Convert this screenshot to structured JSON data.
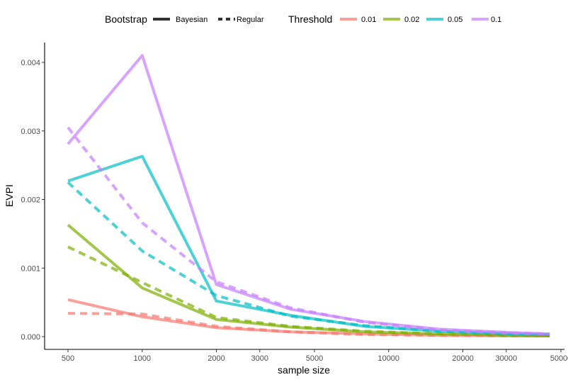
{
  "chart_data": {
    "type": "line",
    "title": "",
    "xlabel": "sample size",
    "ylabel": "EVPI",
    "x_scale": "log",
    "xlim": [
      500,
      50000
    ],
    "ylim": [
      0,
      0.0042
    ],
    "x_ticks": [
      500,
      1000,
      2000,
      3000,
      5000,
      10000,
      20000,
      30000,
      50000
    ],
    "x_tick_labels": [
      "500",
      "1000",
      "2000",
      "3000",
      "5000",
      "10000",
      "20000",
      "30000",
      "50000"
    ],
    "y_ticks": [
      0,
      0.001,
      0.002,
      0.003,
      0.004
    ],
    "y_tick_labels": [
      "0.000",
      "0.001",
      "0.002",
      "0.003",
      "0.004"
    ],
    "grid": false,
    "legend_position": "top",
    "legends": [
      {
        "title": "Bootstrap",
        "entries": [
          {
            "label": "Bayesian",
            "linetype": "solid"
          },
          {
            "label": "Regular",
            "linetype": "dashed"
          }
        ]
      },
      {
        "title": "Threshold",
        "entries": [
          {
            "label": "0.01",
            "color": "#F8766D"
          },
          {
            "label": "0.02",
            "color": "#7CAE00"
          },
          {
            "label": "0.05",
            "color": "#00BFC4"
          },
          {
            "label": "0.1",
            "color": "#C77CFF"
          }
        ]
      }
    ],
    "x": [
      500,
      1000,
      2000,
      4000,
      8000,
      16000,
      32000,
      45000
    ],
    "series": [
      {
        "threshold": "0.01",
        "bootstrap": "Bayesian",
        "color": "#F8766D",
        "linetype": "solid",
        "values": [
          0.00054,
          0.00029,
          0.00013,
          7e-05,
          4e-05,
          2e-05,
          1e-05,
          1e-05
        ]
      },
      {
        "threshold": "0.01",
        "bootstrap": "Regular",
        "color": "#F8766D",
        "linetype": "dashed",
        "values": [
          0.00034,
          0.00033,
          0.00015,
          7e-05,
          3e-05,
          2e-05,
          1e-05,
          1e-05
        ]
      },
      {
        "threshold": "0.02",
        "bootstrap": "Bayesian",
        "color": "#7CAE00",
        "linetype": "solid",
        "values": [
          0.00163,
          0.00071,
          0.00025,
          0.00014,
          7e-05,
          4e-05,
          2e-05,
          1e-05
        ]
      },
      {
        "threshold": "0.02",
        "bootstrap": "Regular",
        "color": "#7CAE00",
        "linetype": "dashed",
        "values": [
          0.00131,
          0.00079,
          0.00028,
          0.00015,
          8e-05,
          4e-05,
          2e-05,
          1e-05
        ]
      },
      {
        "threshold": "0.05",
        "bootstrap": "Bayesian",
        "color": "#00BFC4",
        "linetype": "solid",
        "values": [
          0.00227,
          0.00263,
          0.00052,
          0.00031,
          0.00015,
          8e-05,
          4e-05,
          3e-05
        ]
      },
      {
        "threshold": "0.05",
        "bootstrap": "Regular",
        "color": "#00BFC4",
        "linetype": "dashed",
        "values": [
          0.00225,
          0.00125,
          0.0006,
          0.0003,
          0.00016,
          8e-05,
          4e-05,
          3e-05
        ]
      },
      {
        "threshold": "0.1",
        "bootstrap": "Bayesian",
        "color": "#C77CFF",
        "linetype": "solid",
        "values": [
          0.00281,
          0.0041,
          0.00076,
          0.0004,
          0.00022,
          0.00011,
          6e-05,
          4e-05
        ]
      },
      {
        "threshold": "0.1",
        "bootstrap": "Regular",
        "color": "#C77CFF",
        "linetype": "dashed",
        "values": [
          0.00305,
          0.00166,
          0.0008,
          0.00042,
          0.00021,
          0.0001,
          5e-05,
          4e-05
        ]
      }
    ]
  }
}
